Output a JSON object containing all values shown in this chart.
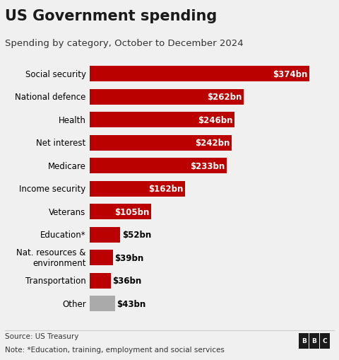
{
  "title": "US Government spending",
  "subtitle": "Spending by category, October to December 2024",
  "source": "Source: US Treasury",
  "note": "Note: *Education, training, employment and social services",
  "categories": [
    "Social security",
    "National defence",
    "Health",
    "Net interest",
    "Medicare",
    "Income security",
    "Veterans",
    "Education*",
    "Nat. resources &\nenvironment",
    "Transportation",
    "Other"
  ],
  "values": [
    374,
    262,
    246,
    242,
    233,
    162,
    105,
    52,
    39,
    36,
    43
  ],
  "labels": [
    "$374bn",
    "$262bn",
    "$246bn",
    "$242bn",
    "$233bn",
    "$162bn",
    "$105bn",
    "$52bn",
    "$39bn",
    "$36bn",
    "$43bn"
  ],
  "bar_colors": [
    "#bb0000",
    "#bb0000",
    "#bb0000",
    "#bb0000",
    "#bb0000",
    "#bb0000",
    "#bb0000",
    "#bb0000",
    "#bb0000",
    "#bb0000",
    "#aaaaaa"
  ],
  "background_color": "#f0f0f0",
  "xlim": [
    0,
    410
  ],
  "title_fontsize": 15,
  "subtitle_fontsize": 9.5,
  "label_fontsize": 8.5,
  "category_fontsize": 8.5,
  "source_fontsize": 7.5,
  "inside_label_threshold": 60
}
